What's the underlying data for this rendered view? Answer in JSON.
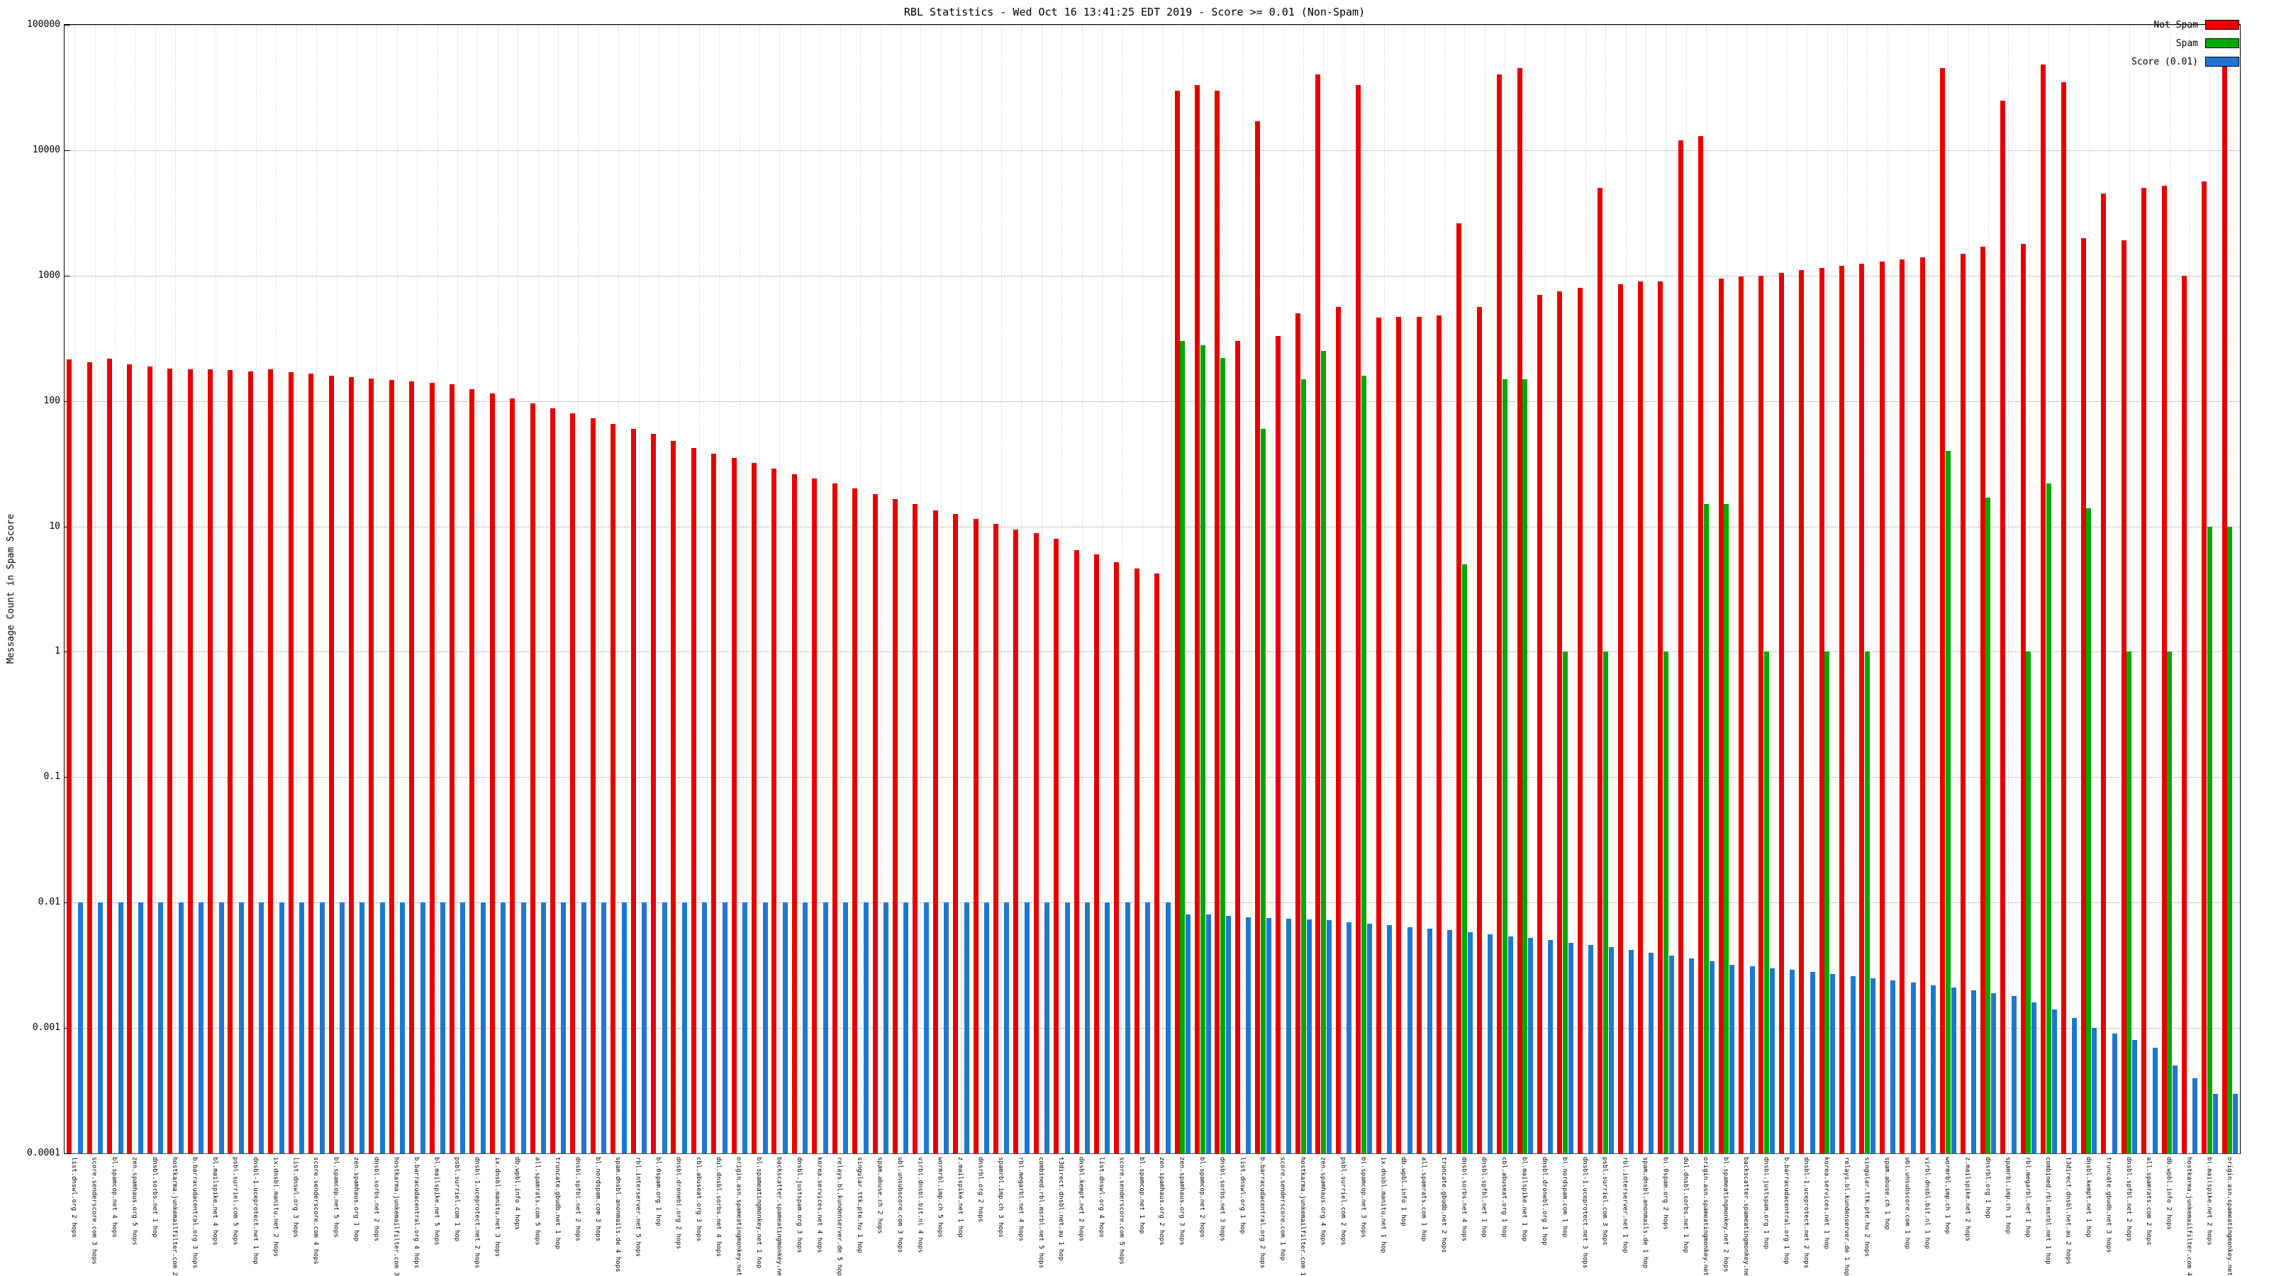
{
  "chart_data": {
    "type": "bar",
    "title": "RBL Statistics - Wed Oct 16 13:41:25 EDT 2019 - Score >= 0.01 (Non-Spam)",
    "xlabel": "",
    "ylabel": "Message Count in Spam Score",
    "log_y": true,
    "ylim": [
      0.0001,
      100000
    ],
    "grid": true,
    "legend_position": "top-right",
    "y_ticks": [
      "100000",
      "10000",
      "1000",
      "100",
      "10",
      "1",
      "0.1",
      "0.01",
      "0.001",
      "0.0001"
    ],
    "categories": [
      "list.dnswl.org 2 hops",
      "score.senderscore.com 3 hops",
      "bl.spamcop.net 4 hops",
      "zen.spamhaus.org 5 hops",
      "dnsbl.sorbs.net 1 hop",
      "hostkarma.junkemailfilter.com 2 hops",
      "b.barracudacentral.org 3 hops",
      "bl.mailspike.net 4 hops",
      "psbl.surriel.com 5 hops",
      "dnsbl-1.uceprotect.net 1 hop",
      "ix.dnsbl.manitu.net 2 hops",
      "list.dnswl.org 3 hops",
      "score.senderscore.com 4 hops",
      "bl.spamcop.net 5 hops",
      "zen.spamhaus.org 1 hop",
      "dnsbl.sorbs.net 2 hops",
      "hostkarma.junkemailfilter.com 3 hops",
      "b.barracudacentral.org 4 hops",
      "bl.mailspike.net 5 hops",
      "psbl.surriel.com 1 hop",
      "dnsbl-1.uceprotect.net 2 hops",
      "ix.dnsbl.manitu.net 3 hops",
      "db.wpbl.info 4 hops",
      "all.spamrats.com 5 hops",
      "truncate.gbudb.net 1 hop",
      "dnsbl.spfbl.net 2 hops",
      "bl.nordspam.com 3 hops",
      "spam.dnsbl.anonmails.de 4 hops",
      "rbl.interserver.net 5 hops",
      "bl.0spam.org 1 hop",
      "dnsbl.dronebl.org 2 hops",
      "cbl.abuseat.org 3 hops",
      "dul.dnsbl.sorbs.net 4 hops",
      "origin.asn.spameatingmonkey.net 5 hops",
      "bl.spameatingmonkey.net 1 hop",
      "backscatter.spameatingmonkey.net 2 hops",
      "dnsbl.justspam.org 3 hops",
      "korea.services.net 4 hops",
      "relays.bl.kundenserver.de 5 hops",
      "singular.ttk.pte.hu 1 hop",
      "spam.abuse.ch 2 hops",
      "ubl.unsubscore.com 3 hops",
      "virbl.dnsbl.bit.nl 4 hops",
      "wormrbl.imp.ch 5 hops",
      "z.mailspike.net 1 hop",
      "dnsrbl.org 2 hops",
      "spamrbl.imp.ch 3 hops",
      "rbl.megarbl.net 4 hops",
      "combined.rbl.msrbl.net 5 hops",
      "t3direct.dnsbl.net.au 1 hop",
      "dnsbl.kempt.net 2 hops",
      "list.dnswl.org 4 hops",
      "score.senderscore.com 5 hops",
      "bl.spamcop.net 1 hop",
      "zen.spamhaus.org 2 hops",
      "zen.spamhaus.org 3 hops",
      "bl.spamcop.net 2 hops",
      "dnsbl.sorbs.net 3 hops",
      "list.dnswl.org 1 hop",
      "b.barracudacentral.org 2 hops",
      "score.senderscore.com 1 hop",
      "hostkarma.junkemailfilter.com 1 hop",
      "zen.spamhaus.org 4 hops",
      "psbl.surriel.com 2 hops",
      "bl.spamcop.net 3 hops",
      "ix.dnsbl.manitu.net 1 hop",
      "db.wpbl.info 1 hop",
      "all.spamrats.com 1 hop",
      "truncate.gbudb.net 2 hops",
      "dnsbl.sorbs.net 4 hops",
      "dnsbl.spfbl.net 1 hop",
      "cbl.abuseat.org 1 hop",
      "bl.mailspike.net 1 hop",
      "dnsbl.dronebl.org 1 hop",
      "bl.nordspam.com 1 hop",
      "dnsbl-1.uceprotect.net 3 hops",
      "psbl.surriel.com 3 hops",
      "rbl.interserver.net 1 hop",
      "spam.dnsbl.anonmails.de 1 hop",
      "bl.0spam.org 2 hops",
      "dul.dnsbl.sorbs.net 1 hop",
      "origin.asn.spameatingmonkey.net 1 hop",
      "bl.spameatingmonkey.net 2 hops",
      "backscatter.spameatingmonkey.net 1 hop",
      "dnsbl.justspam.org 1 hop",
      "b.barracudacentral.org 1 hop",
      "dnsbl-1.uceprotect.net 2 hops",
      "korea.services.net 1 hop",
      "relays.bl.kundenserver.de 1 hop",
      "singular.ttk.pte.hu 2 hops",
      "spam.abuse.ch 1 hop",
      "ubl.unsubscore.com 1 hop",
      "virbl.dnsbl.bit.nl 1 hop",
      "wormrbl.imp.ch 1 hop",
      "z.mailspike.net 2 hops",
      "dnsrbl.org 1 hop",
      "spamrbl.imp.ch 1 hop",
      "rbl.megarbl.net 1 hop",
      "combined.rbl.msrbl.net 1 hop",
      "t3direct.dnsbl.net.au 2 hops",
      "dnsbl.kempt.net 1 hop",
      "truncate.gbudb.net 3 hops",
      "dnsbl.spfbl.net 2 hops",
      "all.spamrats.com 2 hops",
      "db.wpbl.info 2 hops",
      "hostkarma.junkemailfilter.com 4 hops",
      "bl.mailspike.net 2 hops",
      "origin.asn.spameatingmonkey.net 2 hops"
    ],
    "series": [
      {
        "name": "Not Spam",
        "color": "#e60000",
        "values": [
          215,
          205,
          218,
          196,
          188,
          182,
          178,
          180,
          176,
          172,
          180,
          170,
          165,
          160,
          156,
          152,
          148,
          144,
          140,
          136,
          125,
          115,
          105,
          96,
          88,
          80,
          73,
          66,
          60,
          55,
          48,
          42,
          38,
          35,
          32,
          29,
          26,
          24,
          22,
          20,
          18,
          16.5,
          15,
          13.5,
          12.5,
          11.5,
          10.5,
          9.5,
          8.8,
          8,
          6.5,
          6,
          5.2,
          4.6,
          4.2,
          30000,
          33000,
          30000,
          300,
          17000,
          330,
          500,
          40000,
          560,
          33000,
          460,
          470,
          470,
          480,
          2600,
          560,
          40000,
          45000,
          700,
          750,
          800,
          5000,
          850,
          900,
          900,
          12000,
          13000,
          950,
          980,
          1000,
          1050,
          1100,
          1150,
          1200,
          1250,
          1300,
          1350,
          1400,
          45000,
          1500,
          1700,
          25000,
          1800,
          48000,
          35000,
          2000,
          4500,
          1900,
          5000,
          5200,
          1000,
          5600,
          50000
        ]
      },
      {
        "name": "Spam",
        "color": "#00a800",
        "values": [
          null,
          null,
          null,
          null,
          null,
          null,
          null,
          null,
          null,
          null,
          null,
          null,
          null,
          null,
          null,
          null,
          null,
          null,
          null,
          null,
          null,
          null,
          null,
          null,
          null,
          null,
          null,
          null,
          null,
          null,
          null,
          null,
          null,
          null,
          null,
          null,
          null,
          null,
          null,
          null,
          null,
          null,
          null,
          null,
          null,
          null,
          null,
          null,
          null,
          null,
          null,
          null,
          null,
          null,
          null,
          300,
          280,
          220,
          null,
          60,
          null,
          150,
          250,
          null,
          160,
          null,
          null,
          null,
          null,
          5,
          null,
          150,
          150,
          null,
          1,
          null,
          1,
          null,
          null,
          1,
          null,
          15,
          15,
          null,
          1,
          null,
          null,
          1,
          null,
          1,
          null,
          null,
          null,
          40,
          null,
          17,
          null,
          1,
          22,
          null,
          14,
          null,
          1,
          null,
          1,
          null,
          10,
          10
        ]
      },
      {
        "name": "Score (0.01)",
        "color": "#1f77d0",
        "values": [
          0.01,
          0.01,
          0.01,
          0.01,
          0.01,
          0.01,
          0.01,
          0.01,
          0.01,
          0.01,
          0.01,
          0.01,
          0.01,
          0.01,
          0.01,
          0.01,
          0.01,
          0.01,
          0.01,
          0.01,
          0.01,
          0.01,
          0.01,
          0.01,
          0.01,
          0.01,
          0.01,
          0.01,
          0.01,
          0.01,
          0.01,
          0.01,
          0.01,
          0.01,
          0.01,
          0.01,
          0.01,
          0.01,
          0.01,
          0.01,
          0.01,
          0.01,
          0.01,
          0.01,
          0.01,
          0.01,
          0.01,
          0.01,
          0.01,
          0.01,
          0.01,
          0.01,
          0.01,
          0.01,
          0.01,
          0.008,
          0.008,
          0.0078,
          0.0076,
          0.0075,
          0.0074,
          0.0073,
          0.0072,
          0.007,
          0.0068,
          0.0066,
          0.0064,
          0.0062,
          0.006,
          0.0058,
          0.0056,
          0.0054,
          0.0052,
          0.005,
          0.0048,
          0.0046,
          0.0044,
          0.0042,
          0.004,
          0.0038,
          0.0036,
          0.0034,
          0.0032,
          0.0031,
          0.003,
          0.0029,
          0.0028,
          0.0027,
          0.0026,
          0.0025,
          0.0024,
          0.0023,
          0.0022,
          0.0021,
          0.002,
          0.0019,
          0.0018,
          0.0016,
          0.0014,
          0.0012,
          0.001,
          0.0009,
          0.0008,
          0.0007,
          0.0005,
          0.0004,
          0.0003,
          0.0003
        ]
      }
    ]
  },
  "legend": {
    "items": [
      {
        "label": "Not Spam"
      },
      {
        "label": "Spam"
      },
      {
        "label": "Score (0.01)"
      }
    ]
  }
}
